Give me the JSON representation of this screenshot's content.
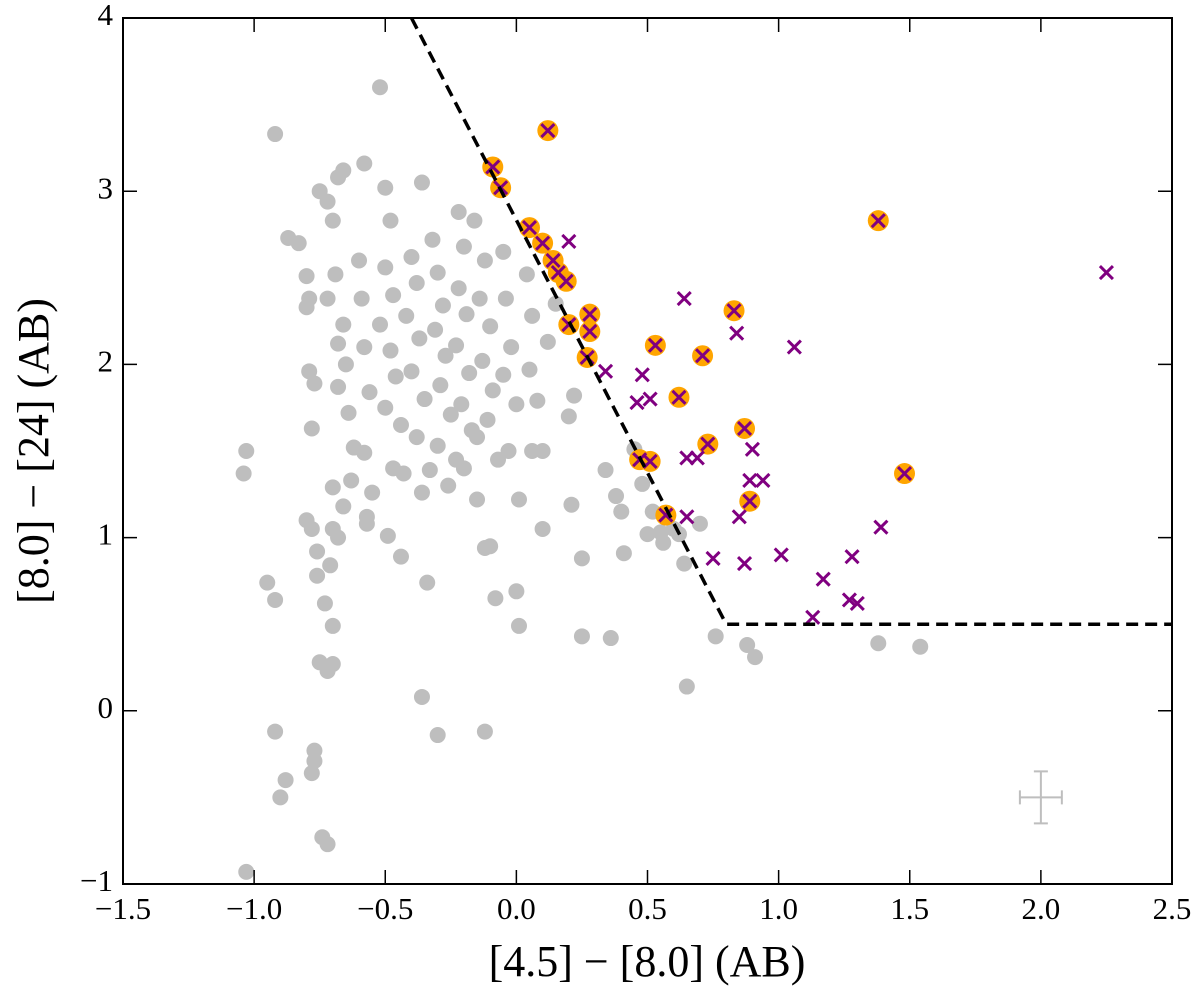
{
  "chart_data": {
    "type": "scatter",
    "x_label": "[4.5] − [8.0] (AB)",
    "y_label": "[8.0] − [24] (AB)",
    "xlim": [
      -1.5,
      2.5
    ],
    "ylim": [
      -1,
      4
    ],
    "xticks": [
      {
        "value": -1.5,
        "label": "−1.5"
      },
      {
        "value": -1.0,
        "label": "−1.0"
      },
      {
        "value": -0.5,
        "label": "−0.5"
      },
      {
        "value": 0,
        "label": "0.0"
      },
      0.5,
      {
        "value": 1,
        "label": "1.0"
      },
      1.5,
      {
        "value": 2,
        "label": "2.0"
      },
      2.5
    ],
    "yticks": [
      {
        "value": -1,
        "label": "−1"
      },
      0,
      1,
      2,
      3,
      4
    ],
    "series": [
      {
        "marker": "circle",
        "color": "#bebebe",
        "x": [
          -1.03,
          -1.04,
          -1.03,
          -0.95,
          -0.92,
          -0.92,
          -0.9,
          -0.88,
          -0.92,
          -0.87,
          -0.83,
          -0.8,
          -0.8,
          -0.79,
          -0.77,
          -0.78,
          -0.79,
          -0.8,
          -0.78,
          -0.76,
          -0.76,
          -0.75,
          -0.74,
          -0.72,
          -0.78,
          -0.77,
          -0.77,
          -0.73,
          -0.71,
          -0.7,
          -0.7,
          -0.72,
          -0.75,
          -0.72,
          -0.68,
          -0.66,
          -0.7,
          -0.72,
          -0.69,
          -0.66,
          -0.68,
          -0.65,
          -0.68,
          -0.64,
          -0.7,
          -0.66,
          -0.7,
          -0.68,
          -0.63,
          -0.62,
          -0.58,
          -0.6,
          -0.59,
          -0.58,
          -0.56,
          -0.58,
          -0.55,
          -0.57,
          -0.52,
          -0.5,
          -0.48,
          -0.5,
          -0.47,
          -0.52,
          -0.48,
          -0.46,
          -0.5,
          -0.44,
          -0.47,
          -0.49,
          -0.44,
          -0.36,
          -0.4,
          -0.38,
          -0.42,
          -0.37,
          -0.4,
          -0.35,
          -0.38,
          -0.33,
          -0.36,
          -0.34,
          -0.36,
          -0.3,
          -0.32,
          -0.3,
          -0.28,
          -0.31,
          -0.27,
          -0.29,
          -0.25,
          -0.3,
          -0.26,
          -0.22,
          -0.2,
          -0.22,
          -0.19,
          -0.23,
          -0.18,
          -0.21,
          -0.17,
          -0.2,
          -0.15,
          -0.12,
          -0.16,
          -0.12,
          -0.14,
          -0.1,
          -0.13,
          -0.09,
          -0.11,
          -0.07,
          -0.1,
          -0.12,
          -0.08,
          -0.05,
          -0.04,
          -0.02,
          -0.05,
          0.0,
          -0.03,
          0.01,
          0.0,
          0.01,
          0.04,
          0.06,
          0.05,
          0.08,
          0.06,
          0.1,
          0.12,
          0.15,
          0.1,
          0.2,
          0.21,
          0.22,
          0.25,
          0.25,
          0.34,
          0.36,
          0.38,
          0.4,
          0.41,
          0.45,
          0.48,
          0.5,
          0.52,
          0.55,
          0.56,
          0.6,
          0.62,
          0.64,
          0.65,
          0.7,
          0.76,
          0.88,
          0.91,
          1.38,
          1.54,
          -0.57,
          -0.43,
          -0.23,
          -0.15
        ],
        "values": [
          1.5,
          1.37,
          -0.93,
          0.74,
          0.64,
          -0.12,
          -0.5,
          -0.4,
          3.33,
          2.73,
          2.7,
          2.51,
          2.33,
          2.38,
          1.89,
          1.63,
          1.96,
          1.1,
          1.05,
          0.92,
          0.78,
          0.28,
          -0.73,
          -0.77,
          -0.36,
          -0.29,
          -0.23,
          0.62,
          0.84,
          0.49,
          0.27,
          0.23,
          3.0,
          2.94,
          3.08,
          3.12,
          2.83,
          2.38,
          2.52,
          2.23,
          2.12,
          2.0,
          1.87,
          1.72,
          1.29,
          1.18,
          1.05,
          1.0,
          1.33,
          1.52,
          3.16,
          2.6,
          2.38,
          2.1,
          1.84,
          1.49,
          1.26,
          1.08,
          3.6,
          3.02,
          2.83,
          2.56,
          2.4,
          2.23,
          2.08,
          1.93,
          1.75,
          1.65,
          1.4,
          1.01,
          0.89,
          3.05,
          2.62,
          2.47,
          2.28,
          2.15,
          1.96,
          1.8,
          1.58,
          1.39,
          1.26,
          0.74,
          0.08,
          -0.14,
          2.72,
          2.53,
          2.34,
          2.2,
          2.05,
          1.88,
          1.71,
          1.53,
          1.3,
          2.88,
          2.68,
          2.44,
          2.29,
          2.11,
          1.95,
          1.77,
          1.62,
          1.4,
          1.22,
          -0.12,
          2.83,
          2.6,
          2.38,
          2.22,
          2.02,
          1.85,
          1.68,
          1.45,
          0.95,
          0.94,
          0.65,
          2.65,
          2.38,
          2.1,
          1.94,
          1.77,
          1.5,
          1.22,
          0.69,
          0.49,
          2.52,
          2.28,
          1.97,
          1.79,
          1.5,
          1.5,
          2.13,
          2.35,
          1.05,
          1.7,
          1.19,
          1.82,
          0.88,
          0.43,
          1.39,
          0.42,
          1.24,
          1.15,
          0.91,
          1.51,
          1.31,
          1.02,
          1.15,
          1.03,
          0.97,
          1.05,
          1.02,
          0.85,
          0.14,
          1.08,
          0.43,
          0.38,
          0.31,
          0.39,
          0.37,
          1.12,
          1.37,
          1.45,
          1.58
        ]
      },
      {
        "marker": "ring",
        "color": "#ffa500",
        "x": [
          0.12,
          -0.09,
          -0.06,
          0.05,
          0.1,
          0.14,
          0.16,
          0.19,
          0.28,
          0.2,
          0.28,
          0.27,
          0.53,
          0.83,
          0.71,
          0.62,
          1.38,
          0.87,
          0.73,
          0.47,
          0.51,
          0.89,
          1.48,
          0.57
        ],
        "values": [
          3.35,
          3.14,
          3.02,
          2.79,
          2.7,
          2.6,
          2.53,
          2.48,
          2.29,
          2.23,
          2.19,
          2.04,
          2.11,
          2.31,
          2.05,
          1.81,
          2.83,
          1.63,
          1.54,
          1.45,
          1.44,
          1.21,
          1.37,
          1.13
        ]
      },
      {
        "marker": "x",
        "color": "#800080",
        "x": [
          0.12,
          -0.09,
          -0.06,
          0.05,
          0.1,
          0.2,
          0.14,
          0.16,
          0.19,
          0.28,
          0.2,
          0.28,
          0.27,
          0.34,
          0.53,
          0.48,
          0.46,
          0.51,
          0.64,
          0.83,
          0.84,
          0.71,
          1.06,
          0.62,
          1.38,
          2.25,
          0.87,
          0.73,
          0.9,
          0.65,
          0.69,
          0.47,
          0.51,
          0.89,
          0.94,
          0.89,
          1.48,
          0.57,
          0.65,
          0.85,
          1.39,
          0.75,
          0.87,
          1.01,
          1.28,
          1.17,
          1.27,
          1.3,
          1.13
        ],
        "values": [
          3.35,
          3.14,
          3.02,
          2.79,
          2.7,
          2.71,
          2.6,
          2.53,
          2.48,
          2.29,
          2.23,
          2.19,
          2.04,
          1.96,
          2.11,
          1.94,
          1.78,
          1.8,
          2.38,
          2.31,
          2.18,
          2.05,
          2.1,
          1.81,
          2.83,
          2.53,
          1.63,
          1.54,
          1.51,
          1.46,
          1.46,
          1.45,
          1.44,
          1.33,
          1.33,
          1.21,
          1.37,
          1.13,
          1.12,
          1.12,
          1.06,
          0.88,
          0.85,
          0.9,
          0.89,
          0.76,
          0.64,
          0.62,
          0.54
        ]
      }
    ],
    "lines": [
      {
        "color": "#000000",
        "dashed": true,
        "x": [
          -0.4,
          0.8,
          2.5
        ],
        "values": [
          4,
          0.5,
          0.5
        ]
      }
    ],
    "error_bar": {
      "color": "#bebebe",
      "x": [
        2.0
      ],
      "values": [
        -0.5
      ],
      "xerr": [
        0.08
      ],
      "yerr": [
        0.15
      ]
    }
  }
}
